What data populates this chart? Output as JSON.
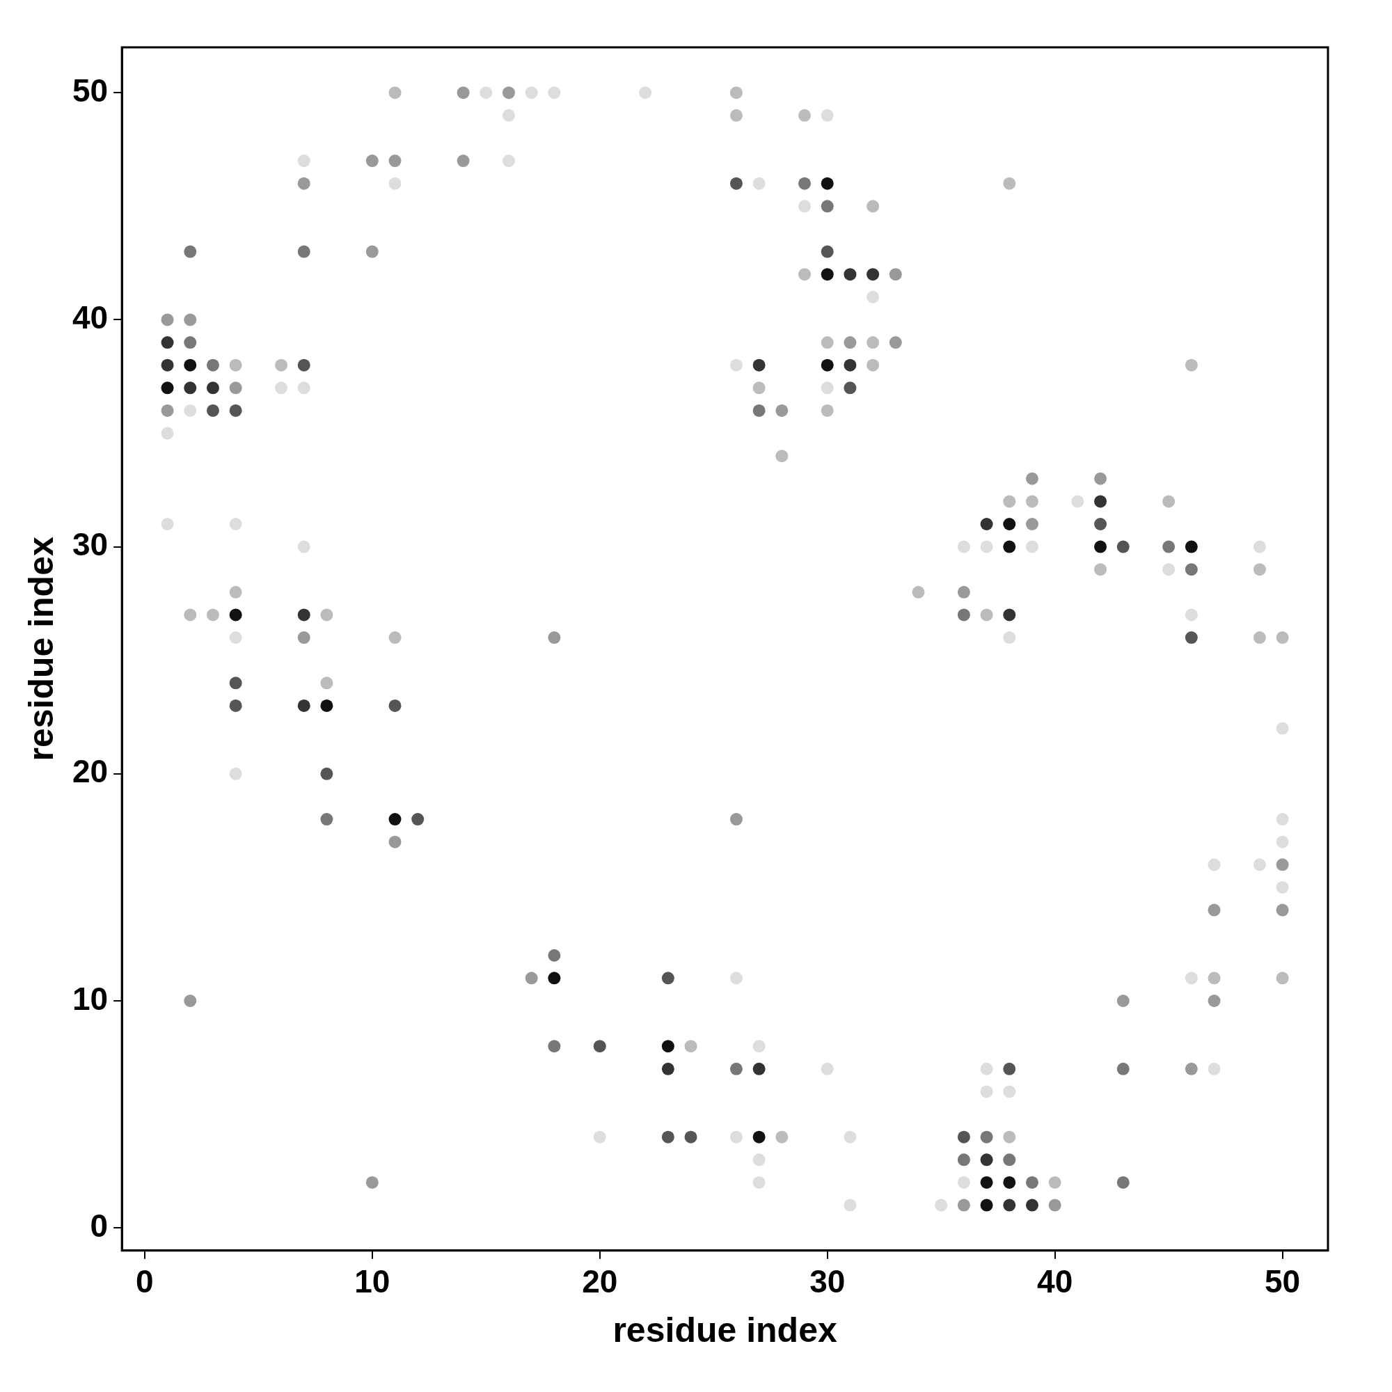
{
  "chart_data": {
    "type": "scatter",
    "xlabel": "residue index",
    "ylabel": "residue index",
    "xlim": [
      -1,
      52
    ],
    "ylim": [
      -1,
      52
    ],
    "xticks": [
      0,
      10,
      20,
      30,
      40,
      50
    ],
    "yticks": [
      0,
      10,
      20,
      30,
      40,
      50
    ],
    "marker": "circle",
    "legend": false,
    "grid": false,
    "series": [
      {
        "x": [
          11,
          14,
          15,
          16,
          17,
          18,
          22,
          26,
          16,
          26,
          29,
          30,
          7,
          10,
          11,
          14,
          16,
          7,
          11,
          26,
          27,
          29,
          30,
          38,
          29,
          30,
          32,
          2,
          7,
          10,
          30,
          29,
          30,
          31,
          32,
          33,
          32,
          1,
          2,
          1,
          2,
          30,
          31,
          32,
          33,
          1,
          2,
          3,
          4,
          6,
          7,
          26,
          27,
          30,
          31,
          32,
          46,
          1,
          2,
          3,
          4,
          6,
          7,
          27,
          30,
          31,
          1,
          2,
          3,
          4,
          27,
          28,
          30,
          1,
          28,
          39,
          42,
          38,
          39,
          41,
          42,
          45,
          1,
          4,
          37,
          38,
          39,
          42,
          7,
          36,
          37,
          38,
          39,
          42,
          43,
          45,
          46,
          49,
          42,
          45,
          46,
          49,
          4,
          34,
          36,
          2,
          3,
          4,
          7,
          8,
          36,
          37,
          38,
          46,
          4,
          7,
          11,
          18,
          38,
          46,
          49,
          50,
          4,
          8,
          4,
          7,
          8,
          11,
          50,
          4,
          8,
          8,
          11,
          12,
          26,
          50,
          11,
          50,
          47,
          49,
          50,
          50,
          47,
          50,
          18,
          17,
          18,
          23,
          26,
          46,
          47,
          50,
          2,
          43,
          47,
          18,
          20,
          23,
          24,
          27,
          23,
          26,
          27,
          30,
          37,
          38,
          43,
          46,
          47,
          37,
          38,
          20,
          23,
          24,
          26,
          27,
          28,
          31,
          36,
          37,
          38,
          27,
          36,
          37,
          38,
          10,
          27,
          36,
          37,
          38,
          39,
          40,
          43,
          31,
          35,
          36,
          37,
          38,
          39,
          40
        ],
        "values": [
          50,
          50,
          50,
          50,
          50,
          50,
          50,
          50,
          49,
          49,
          49,
          49,
          47,
          47,
          47,
          47,
          47,
          46,
          46,
          46,
          46,
          46,
          46,
          46,
          45,
          45,
          45,
          43,
          43,
          43,
          43,
          42,
          42,
          42,
          42,
          42,
          41,
          40,
          40,
          39,
          39,
          39,
          39,
          39,
          39,
          38,
          38,
          38,
          38,
          38,
          38,
          38,
          38,
          38,
          38,
          38,
          38,
          37,
          37,
          37,
          37,
          37,
          37,
          37,
          37,
          37,
          36,
          36,
          36,
          36,
          36,
          36,
          36,
          35,
          34,
          33,
          33,
          32,
          32,
          32,
          32,
          32,
          31,
          31,
          31,
          31,
          31,
          31,
          30,
          30,
          30,
          30,
          30,
          30,
          30,
          30,
          30,
          30,
          29,
          29,
          29,
          29,
          28,
          28,
          28,
          27,
          27,
          27,
          27,
          27,
          27,
          27,
          27,
          27,
          26,
          26,
          26,
          26,
          26,
          26,
          26,
          26,
          24,
          24,
          23,
          23,
          23,
          23,
          22,
          20,
          20,
          18,
          18,
          18,
          18,
          18,
          17,
          17,
          16,
          16,
          16,
          15,
          14,
          14,
          12,
          11,
          11,
          11,
          11,
          11,
          11,
          11,
          10,
          10,
          10,
          8,
          8,
          8,
          8,
          8,
          7,
          7,
          7,
          7,
          7,
          7,
          7,
          7,
          7,
          6,
          6,
          4,
          4,
          4,
          4,
          4,
          4,
          4,
          4,
          4,
          4,
          3,
          3,
          3,
          3,
          2,
          2,
          2,
          2,
          2,
          2,
          2,
          2,
          1,
          1,
          1,
          1,
          1,
          1,
          1
        ],
        "colors": [
          "#bbbbbb",
          "#999999",
          "#dddddd",
          "#999999",
          "#dddddd",
          "#dddddd",
          "#dddddd",
          "#bbbbbb",
          "#dddddd",
          "#bbbbbb",
          "#bbbbbb",
          "#dddddd",
          "#dddddd",
          "#999999",
          "#999999",
          "#999999",
          "#dddddd",
          "#999999",
          "#dddddd",
          "#555555",
          "#dddddd",
          "#777777",
          "#111111",
          "#bbbbbb",
          "#dddddd",
          "#777777",
          "#bbbbbb",
          "#777777",
          "#777777",
          "#999999",
          "#555555",
          "#bbbbbb",
          "#111111",
          "#333333",
          "#333333",
          "#999999",
          "#dddddd",
          "#999999",
          "#999999",
          "#333333",
          "#777777",
          "#bbbbbb",
          "#999999",
          "#bbbbbb",
          "#999999",
          "#333333",
          "#111111",
          "#777777",
          "#bbbbbb",
          "#bbbbbb",
          "#555555",
          "#dddddd",
          "#333333",
          "#111111",
          "#333333",
          "#bbbbbb",
          "#bbbbbb",
          "#111111",
          "#333333",
          "#333333",
          "#999999",
          "#dddddd",
          "#dddddd",
          "#bbbbbb",
          "#dddddd",
          "#555555",
          "#999999",
          "#dddddd",
          "#555555",
          "#555555",
          "#777777",
          "#999999",
          "#bbbbbb",
          "#dddddd",
          "#bbbbbb",
          "#999999",
          "#999999",
          "#bbbbbb",
          "#bbbbbb",
          "#dddddd",
          "#333333",
          "#bbbbbb",
          "#dddddd",
          "#dddddd",
          "#333333",
          "#111111",
          "#999999",
          "#555555",
          "#dddddd",
          "#dddddd",
          "#dddddd",
          "#111111",
          "#dddddd",
          "#111111",
          "#555555",
          "#777777",
          "#111111",
          "#dddddd",
          "#bbbbbb",
          "#dddddd",
          "#777777",
          "#bbbbbb",
          "#bbbbbb",
          "#bbbbbb",
          "#999999",
          "#bbbbbb",
          "#bbbbbb",
          "#111111",
          "#333333",
          "#bbbbbb",
          "#777777",
          "#bbbbbb",
          "#333333",
          "#dddddd",
          "#dddddd",
          "#999999",
          "#bbbbbb",
          "#999999",
          "#dddddd",
          "#555555",
          "#bbbbbb",
          "#bbbbbb",
          "#555555",
          "#bbbbbb",
          "#555555",
          "#333333",
          "#111111",
          "#555555",
          "#dddddd",
          "#dddddd",
          "#555555",
          "#777777",
          "#111111",
          "#555555",
          "#999999",
          "#dddddd",
          "#999999",
          "#dddddd",
          "#dddddd",
          "#dddddd",
          "#999999",
          "#dddddd",
          "#999999",
          "#999999",
          "#777777",
          "#999999",
          "#111111",
          "#555555",
          "#dddddd",
          "#dddddd",
          "#bbbbbb",
          "#bbbbbb",
          "#999999",
          "#999999",
          "#999999",
          "#777777",
          "#555555",
          "#111111",
          "#bbbbbb",
          "#dddddd",
          "#333333",
          "#777777",
          "#333333",
          "#dddddd",
          "#dddddd",
          "#555555",
          "#777777",
          "#999999",
          "#dddddd",
          "#dddddd",
          "#dddddd",
          "#dddddd",
          "#555555",
          "#555555",
          "#dddddd",
          "#111111",
          "#bbbbbb",
          "#dddddd",
          "#555555",
          "#777777",
          "#bbbbbb",
          "#dddddd",
          "#777777",
          "#333333",
          "#777777",
          "#999999",
          "#dddddd",
          "#dddddd",
          "#111111",
          "#111111",
          "#777777",
          "#bbbbbb",
          "#777777",
          "#dddddd",
          "#dddddd",
          "#999999",
          "#111111",
          "#333333",
          "#333333",
          "#999999"
        ]
      }
    ]
  }
}
